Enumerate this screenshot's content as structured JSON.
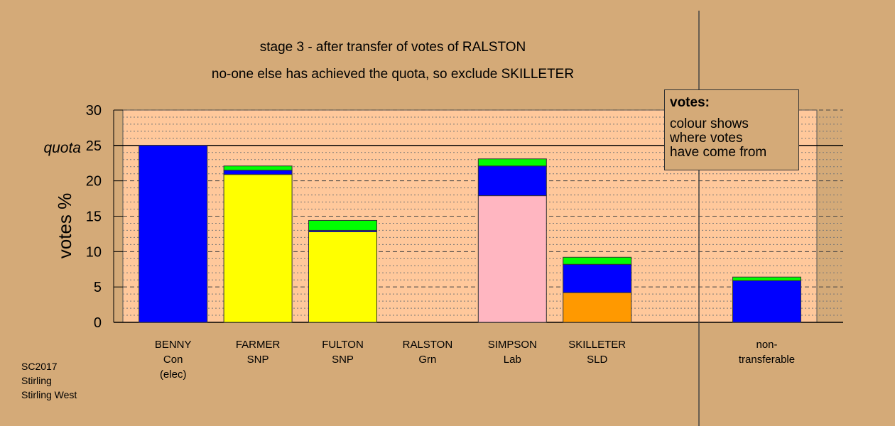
{
  "chart_data": {
    "type": "bar",
    "title": "stage 3 - after transfer of votes of RALSTON",
    "subtitle": "no-one else has achieved the quota, so exclude SKILLETER",
    "ylabel": "votes %",
    "ylim": [
      0,
      30
    ],
    "yticks": [
      0,
      5,
      10,
      15,
      20,
      25,
      30
    ],
    "quota": {
      "value": 25,
      "label": "quota"
    },
    "categories": [
      {
        "name": "BENNY",
        "party": "Con",
        "note": "(elec)"
      },
      {
        "name": "FARMER",
        "party": "SNP",
        "note": ""
      },
      {
        "name": "FULTON",
        "party": "SNP",
        "note": ""
      },
      {
        "name": "RALSTON",
        "party": "Grn",
        "note": ""
      },
      {
        "name": "SIMPSON",
        "party": "Lab",
        "note": ""
      },
      {
        "name": "SKILLETER",
        "party": "SLD",
        "note": ""
      },
      {
        "name": "",
        "party": "",
        "note": ""
      },
      {
        "name": "non-",
        "party": "transferable",
        "note": ""
      }
    ],
    "stacks": [
      [
        {
          "value": 25.0,
          "color": "#0000FF"
        }
      ],
      [
        {
          "value": 20.9,
          "color": "#FFFF00"
        },
        {
          "value": 0.6,
          "color": "#0000FF"
        },
        {
          "value": 0.6,
          "color": "#00FF00"
        }
      ],
      [
        {
          "value": 12.8,
          "color": "#FFFF00"
        },
        {
          "value": 0.2,
          "color": "#0000FF"
        },
        {
          "value": 1.4,
          "color": "#00FF00"
        }
      ],
      [],
      [
        {
          "value": 17.9,
          "color": "#FFB6C1"
        },
        {
          "value": 4.2,
          "color": "#0000FF"
        },
        {
          "value": 1.0,
          "color": "#00FF00"
        }
      ],
      [
        {
          "value": 4.2,
          "color": "#FF9900"
        },
        {
          "value": 4.0,
          "color": "#0000FF"
        },
        {
          "value": 1.0,
          "color": "#00FF00"
        }
      ],
      [],
      [
        {
          "value": 5.9,
          "color": "#0000FF"
        },
        {
          "value": 0.5,
          "color": "#00FF00"
        }
      ]
    ],
    "legend": {
      "title": "votes:",
      "lines": [
        "colour shows",
        "where votes",
        "have come from"
      ]
    },
    "colors": {
      "background": "#D4AA78",
      "plot_background": "#FFC89B"
    }
  },
  "footer": [
    "SC2017",
    "Stirling",
    "Stirling West"
  ]
}
